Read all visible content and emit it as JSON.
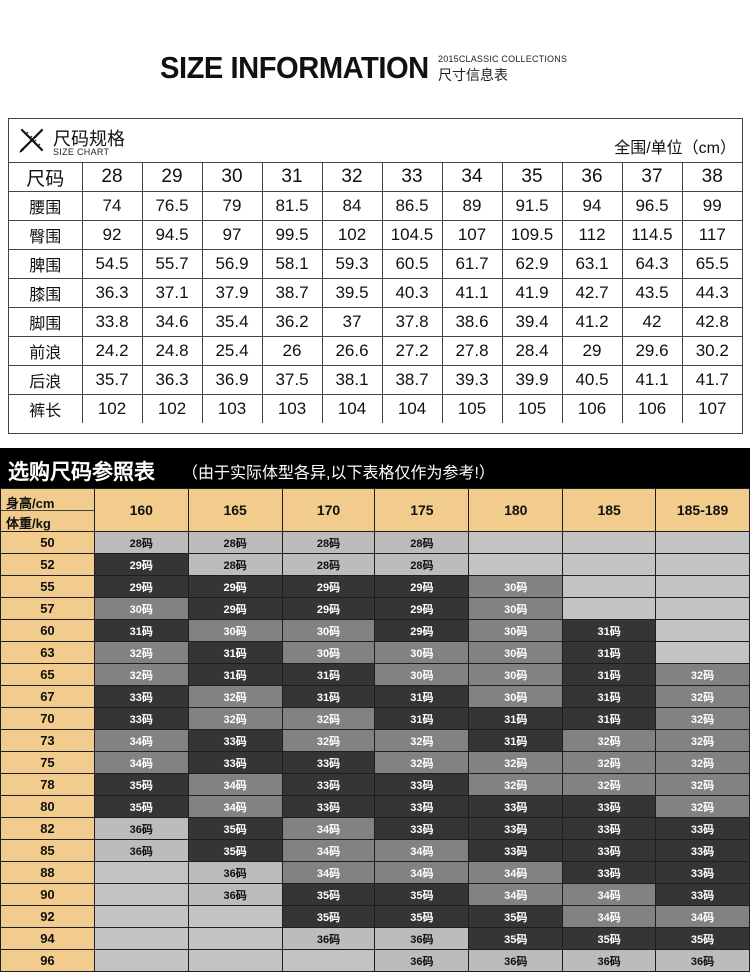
{
  "header": {
    "title": "SIZE INFORMATION",
    "sub_en": "2015CLASSIC COLLECTIONS",
    "sub_cn": "尺寸信息表"
  },
  "size_chart": {
    "title_cn": "尺码规格",
    "title_en": "SIZE CHART",
    "unit": "全围/单位（cm）",
    "icon": "ruler-pencil-icon",
    "header_label": "尺码",
    "sizes": [
      "28",
      "29",
      "30",
      "31",
      "32",
      "33",
      "34",
      "35",
      "36",
      "37",
      "38"
    ],
    "rows": [
      {
        "label": "腰围",
        "values": [
          "74",
          "76.5",
          "79",
          "81.5",
          "84",
          "86.5",
          "89",
          "91.5",
          "94",
          "96.5",
          "99"
        ]
      },
      {
        "label": "臀围",
        "values": [
          "92",
          "94.5",
          "97",
          "99.5",
          "102",
          "104.5",
          "107",
          "109.5",
          "112",
          "114.5",
          "117"
        ]
      },
      {
        "label": "脾围",
        "values": [
          "54.5",
          "55.7",
          "56.9",
          "58.1",
          "59.3",
          "60.5",
          "61.7",
          "62.9",
          "63.1",
          "64.3",
          "65.5"
        ]
      },
      {
        "label": "膝围",
        "values": [
          "36.3",
          "37.1",
          "37.9",
          "38.7",
          "39.5",
          "40.3",
          "41.1",
          "41.9",
          "42.7",
          "43.5",
          "44.3"
        ]
      },
      {
        "label": "脚围",
        "values": [
          "33.8",
          "34.6",
          "35.4",
          "36.2",
          "37",
          "37.8",
          "38.6",
          "39.4",
          "41.2",
          "42",
          "42.8"
        ]
      },
      {
        "label": "前浪",
        "values": [
          "24.2",
          "24.8",
          "25.4",
          "26",
          "26.6",
          "27.2",
          "27.8",
          "28.4",
          "29",
          "29.6",
          "30.2"
        ]
      },
      {
        "label": "后浪",
        "values": [
          "35.7",
          "36.3",
          "36.9",
          "37.5",
          "38.1",
          "38.7",
          "39.3",
          "39.9",
          "40.5",
          "41.1",
          "41.7"
        ]
      },
      {
        "label": "裤长",
        "values": [
          "102",
          "102",
          "103",
          "103",
          "104",
          "104",
          "105",
          "105",
          "106",
          "106",
          "107"
        ]
      }
    ]
  },
  "reference": {
    "title": "选购尺码参照表",
    "note": "（由于实际体型各异,以下表格仅作为参考!）",
    "corner_height": "身高/cm",
    "corner_weight": "体重/kg",
    "heights": [
      "160",
      "165",
      "170",
      "175",
      "180",
      "185",
      "185-189"
    ],
    "shade_colors": {
      "e": "#c3c3c3",
      "lg": "#bcbcbc",
      "md": "#828282",
      "dk": "#353535"
    },
    "rows": [
      {
        "weight": "50",
        "cells": [
          [
            "28码",
            "lg"
          ],
          [
            "28码",
            "lg"
          ],
          [
            "28码",
            "lg"
          ],
          [
            "28码",
            "lg"
          ],
          [
            "",
            "e"
          ],
          [
            "",
            "e"
          ],
          [
            "",
            "e"
          ]
        ]
      },
      {
        "weight": "52",
        "cells": [
          [
            "29码",
            "dk"
          ],
          [
            "28码",
            "lg"
          ],
          [
            "28码",
            "lg"
          ],
          [
            "28码",
            "lg"
          ],
          [
            "",
            "e"
          ],
          [
            "",
            "e"
          ],
          [
            "",
            "e"
          ]
        ]
      },
      {
        "weight": "55",
        "cells": [
          [
            "29码",
            "dk"
          ],
          [
            "29码",
            "dk"
          ],
          [
            "29码",
            "dk"
          ],
          [
            "29码",
            "dk"
          ],
          [
            "30码",
            "md"
          ],
          [
            "",
            "e"
          ],
          [
            "",
            "e"
          ]
        ]
      },
      {
        "weight": "57",
        "cells": [
          [
            "30码",
            "md"
          ],
          [
            "29码",
            "dk"
          ],
          [
            "29码",
            "dk"
          ],
          [
            "29码",
            "dk"
          ],
          [
            "30码",
            "md"
          ],
          [
            "",
            "e"
          ],
          [
            "",
            "e"
          ]
        ]
      },
      {
        "weight": "60",
        "cells": [
          [
            "31码",
            "dk"
          ],
          [
            "30码",
            "md"
          ],
          [
            "30码",
            "md"
          ],
          [
            "29码",
            "dk"
          ],
          [
            "30码",
            "md"
          ],
          [
            "31码",
            "dk"
          ],
          [
            "",
            "e"
          ]
        ]
      },
      {
        "weight": "63",
        "cells": [
          [
            "32码",
            "md"
          ],
          [
            "31码",
            "dk"
          ],
          [
            "30码",
            "md"
          ],
          [
            "30码",
            "md"
          ],
          [
            "30码",
            "md"
          ],
          [
            "31码",
            "dk"
          ],
          [
            "",
            "e"
          ]
        ]
      },
      {
        "weight": "65",
        "cells": [
          [
            "32码",
            "md"
          ],
          [
            "31码",
            "dk"
          ],
          [
            "31码",
            "dk"
          ],
          [
            "30码",
            "md"
          ],
          [
            "30码",
            "md"
          ],
          [
            "31码",
            "dk"
          ],
          [
            "32码",
            "md"
          ]
        ]
      },
      {
        "weight": "67",
        "cells": [
          [
            "33码",
            "dk"
          ],
          [
            "32码",
            "md"
          ],
          [
            "31码",
            "dk"
          ],
          [
            "31码",
            "dk"
          ],
          [
            "30码",
            "md"
          ],
          [
            "31码",
            "dk"
          ],
          [
            "32码",
            "md"
          ]
        ]
      },
      {
        "weight": "70",
        "cells": [
          [
            "33码",
            "dk"
          ],
          [
            "32码",
            "md"
          ],
          [
            "32码",
            "md"
          ],
          [
            "31码",
            "dk"
          ],
          [
            "31码",
            "dk"
          ],
          [
            "31码",
            "dk"
          ],
          [
            "32码",
            "md"
          ]
        ]
      },
      {
        "weight": "73",
        "cells": [
          [
            "34码",
            "md"
          ],
          [
            "33码",
            "dk"
          ],
          [
            "32码",
            "md"
          ],
          [
            "32码",
            "md"
          ],
          [
            "31码",
            "dk"
          ],
          [
            "32码",
            "md"
          ],
          [
            "32码",
            "md"
          ]
        ]
      },
      {
        "weight": "75",
        "cells": [
          [
            "34码",
            "md"
          ],
          [
            "33码",
            "dk"
          ],
          [
            "33码",
            "dk"
          ],
          [
            "32码",
            "md"
          ],
          [
            "32码",
            "md"
          ],
          [
            "32码",
            "md"
          ],
          [
            "32码",
            "md"
          ]
        ]
      },
      {
        "weight": "78",
        "cells": [
          [
            "35码",
            "dk"
          ],
          [
            "34码",
            "md"
          ],
          [
            "33码",
            "dk"
          ],
          [
            "33码",
            "dk"
          ],
          [
            "32码",
            "md"
          ],
          [
            "32码",
            "md"
          ],
          [
            "32码",
            "md"
          ]
        ]
      },
      {
        "weight": "80",
        "cells": [
          [
            "35码",
            "dk"
          ],
          [
            "34码",
            "md"
          ],
          [
            "33码",
            "dk"
          ],
          [
            "33码",
            "dk"
          ],
          [
            "33码",
            "dk"
          ],
          [
            "33码",
            "dk"
          ],
          [
            "32码",
            "md"
          ]
        ]
      },
      {
        "weight": "82",
        "cells": [
          [
            "36码",
            "lg"
          ],
          [
            "35码",
            "dk"
          ],
          [
            "34码",
            "md"
          ],
          [
            "33码",
            "dk"
          ],
          [
            "33码",
            "dk"
          ],
          [
            "33码",
            "dk"
          ],
          [
            "33码",
            "dk"
          ]
        ]
      },
      {
        "weight": "85",
        "cells": [
          [
            "36码",
            "lg"
          ],
          [
            "35码",
            "dk"
          ],
          [
            "34码",
            "md"
          ],
          [
            "34码",
            "md"
          ],
          [
            "33码",
            "dk"
          ],
          [
            "33码",
            "dk"
          ],
          [
            "33码",
            "dk"
          ]
        ]
      },
      {
        "weight": "88",
        "cells": [
          [
            "",
            "e"
          ],
          [
            "36码",
            "lg"
          ],
          [
            "34码",
            "md"
          ],
          [
            "34码",
            "md"
          ],
          [
            "34码",
            "md"
          ],
          [
            "33码",
            "dk"
          ],
          [
            "33码",
            "dk"
          ]
        ]
      },
      {
        "weight": "90",
        "cells": [
          [
            "",
            "e"
          ],
          [
            "36码",
            "lg"
          ],
          [
            "35码",
            "dk"
          ],
          [
            "35码",
            "dk"
          ],
          [
            "34码",
            "md"
          ],
          [
            "34码",
            "md"
          ],
          [
            "33码",
            "dk"
          ]
        ]
      },
      {
        "weight": "92",
        "cells": [
          [
            "",
            "e"
          ],
          [
            "",
            "e"
          ],
          [
            "35码",
            "dk"
          ],
          [
            "35码",
            "dk"
          ],
          [
            "35码",
            "dk"
          ],
          [
            "34码",
            "md"
          ],
          [
            "34码",
            "md"
          ]
        ]
      },
      {
        "weight": "94",
        "cells": [
          [
            "",
            "e"
          ],
          [
            "",
            "e"
          ],
          [
            "36码",
            "lg"
          ],
          [
            "36码",
            "lg"
          ],
          [
            "35码",
            "dk"
          ],
          [
            "35码",
            "dk"
          ],
          [
            "35码",
            "dk"
          ]
        ]
      },
      {
        "weight": "96",
        "cells": [
          [
            "",
            "e"
          ],
          [
            "",
            "e"
          ],
          [
            "",
            "e"
          ],
          [
            "36码",
            "lg"
          ],
          [
            "36码",
            "lg"
          ],
          [
            "36码",
            "lg"
          ],
          [
            "36码",
            "lg"
          ]
        ]
      }
    ]
  }
}
